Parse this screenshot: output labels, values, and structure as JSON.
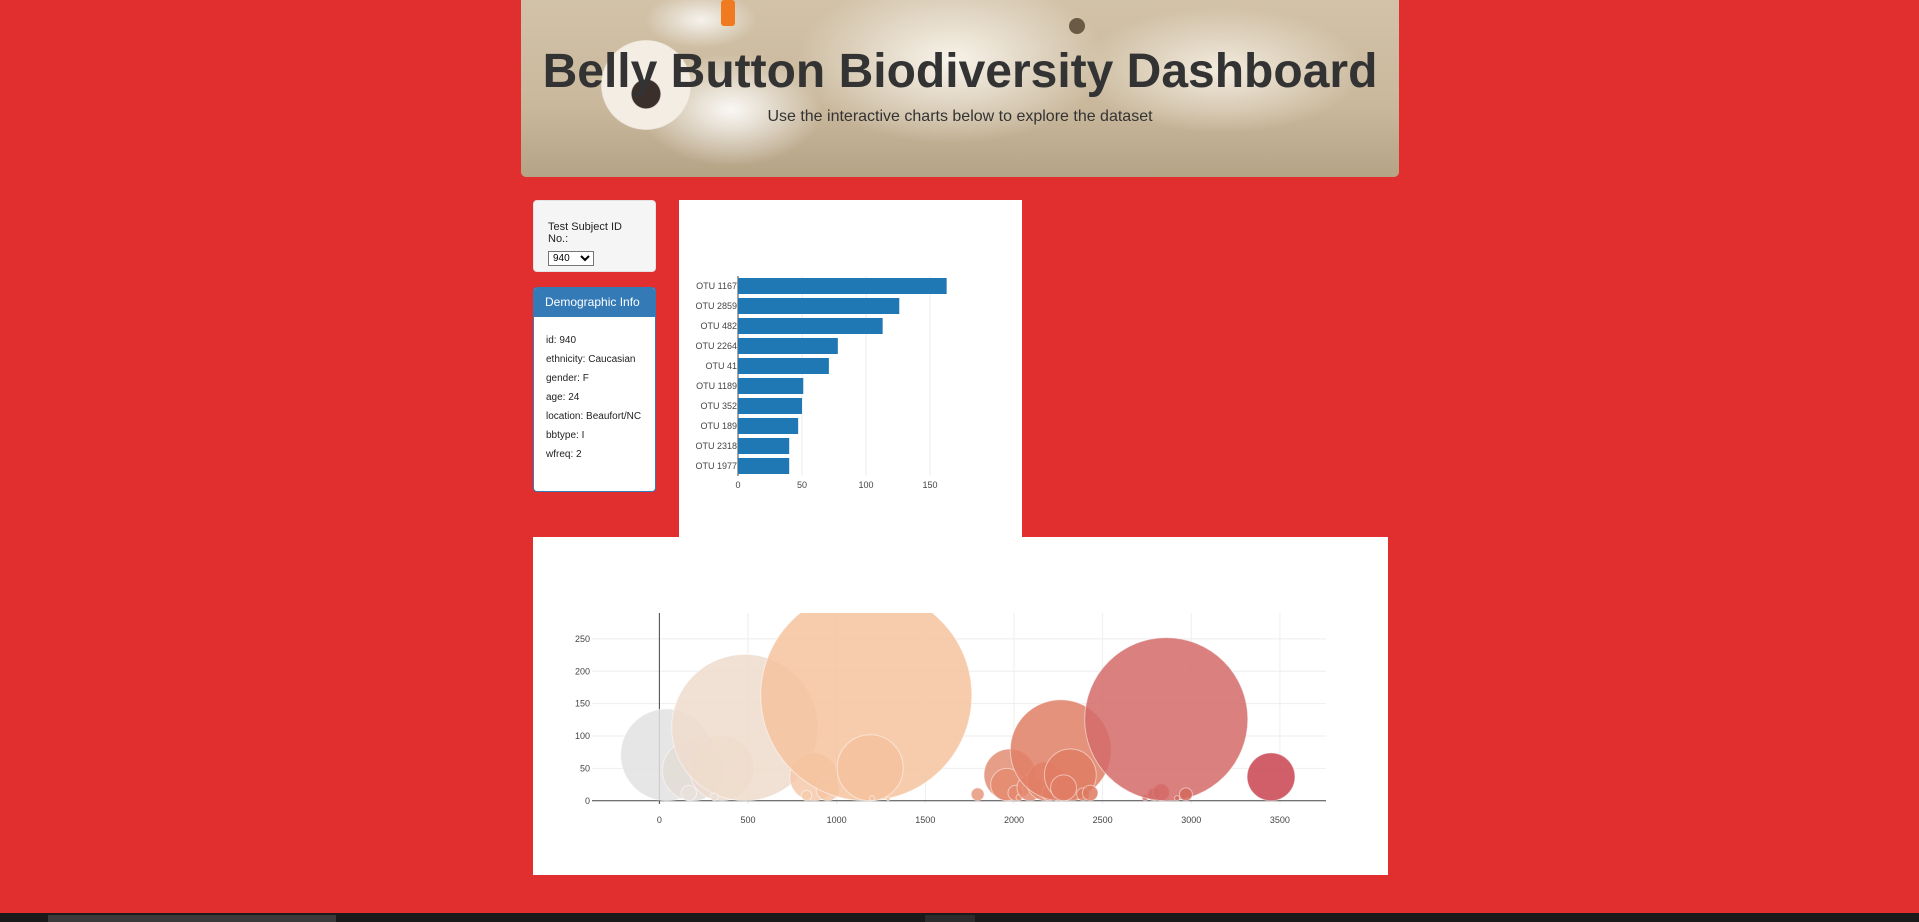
{
  "header": {
    "title": "Belly Button Biodiversity Dashboard",
    "subtitle": "Use the interactive charts below to explore the dataset"
  },
  "selector": {
    "label": "Test Subject ID No.:",
    "selected": "940"
  },
  "demographics": {
    "heading": "Demographic Info",
    "rows": [
      "id: 940",
      "ethnicity: Caucasian",
      "gender: F",
      "age: 24",
      "location: Beaufort/NC",
      "bbtype: I",
      "wfreq: 2"
    ]
  },
  "colors": {
    "page_bg": "#e12e2f",
    "bar": "#1f77b4",
    "panel_primary": "#337ab7"
  },
  "chart_data": [
    {
      "type": "bar",
      "orientation": "horizontal",
      "categories": [
        "OTU 1167",
        "OTU 2859",
        "OTU 482",
        "OTU 2264",
        "OTU 41",
        "OTU 1189",
        "OTU 352",
        "OTU 189",
        "OTU 2318",
        "OTU 1977"
      ],
      "values": [
        163,
        126,
        113,
        78,
        71,
        51,
        50,
        47,
        40,
        40
      ],
      "xlim": [
        0,
        175
      ],
      "xticks": [
        0,
        50,
        100,
        150
      ],
      "grid": "vertical"
    },
    {
      "type": "scatter",
      "subtype": "bubble",
      "xlim": [
        -380,
        3760
      ],
      "ylim": [
        -5,
        290
      ],
      "xticks": [
        0,
        500,
        1000,
        1500,
        2000,
        2500,
        3000,
        3500
      ],
      "yticks": [
        0,
        50,
        100,
        150,
        200,
        250
      ],
      "points": [
        {
          "x": 41,
          "y": 71,
          "r": 71,
          "color": "#e2e2e2"
        },
        {
          "x": 189,
          "y": 47,
          "r": 47,
          "color": "#e3dcd6"
        },
        {
          "x": 352,
          "y": 50,
          "r": 50,
          "color": "#ecdbd0"
        },
        {
          "x": 482,
          "y": 113,
          "r": 113,
          "color": "#efdccc"
        },
        {
          "x": 166,
          "y": 12,
          "r": 12,
          "color": "#e8e0da"
        },
        {
          "x": 310,
          "y": 6,
          "r": 6,
          "color": "#ebded4"
        },
        {
          "x": 870,
          "y": 37,
          "r": 37,
          "color": "#f4c9aa"
        },
        {
          "x": 950,
          "y": 18,
          "r": 18,
          "color": "#f4c6a4"
        },
        {
          "x": 830,
          "y": 8,
          "r": 8,
          "color": "#f5cbac"
        },
        {
          "x": 1167,
          "y": 163,
          "r": 163,
          "color": "#f5c39f"
        },
        {
          "x": 1189,
          "y": 51,
          "r": 51,
          "color": "#f5c19c"
        },
        {
          "x": 1200,
          "y": 4,
          "r": 4,
          "color": "#f4c2a0"
        },
        {
          "x": 1290,
          "y": 3,
          "r": 3,
          "color": "#f3c1a0"
        },
        {
          "x": 1795,
          "y": 10,
          "r": 10,
          "color": "#e9987e"
        },
        {
          "x": 1977,
          "y": 40,
          "r": 40,
          "color": "#e38d73"
        },
        {
          "x": 1960,
          "y": 25,
          "r": 25,
          "color": "#e48b71"
        },
        {
          "x": 2010,
          "y": 12,
          "r": 12,
          "color": "#e48a70"
        },
        {
          "x": 2030,
          "y": 5,
          "r": 5,
          "color": "#e48a70"
        },
        {
          "x": 2090,
          "y": 20,
          "r": 20,
          "color": "#e3876d"
        },
        {
          "x": 2180,
          "y": 30,
          "r": 30,
          "color": "#e2846a"
        },
        {
          "x": 2200,
          "y": 12,
          "r": 12,
          "color": "#e2846a"
        },
        {
          "x": 2240,
          "y": 5,
          "r": 5,
          "color": "#e2826a"
        },
        {
          "x": 2264,
          "y": 78,
          "r": 78,
          "color": "#e07f66"
        },
        {
          "x": 2318,
          "y": 40,
          "r": 40,
          "color": "#df7c63"
        },
        {
          "x": 2280,
          "y": 20,
          "r": 20,
          "color": "#df7d64"
        },
        {
          "x": 2390,
          "y": 10,
          "r": 10,
          "color": "#de7a62"
        },
        {
          "x": 2430,
          "y": 12,
          "r": 12,
          "color": "#de7a62"
        },
        {
          "x": 2740,
          "y": 5,
          "r": 5,
          "color": "#d86f5e"
        },
        {
          "x": 2790,
          "y": 10,
          "r": 10,
          "color": "#d76d5d"
        },
        {
          "x": 2830,
          "y": 13,
          "r": 13,
          "color": "#d66c5c"
        },
        {
          "x": 2859,
          "y": 126,
          "r": 126,
          "color": "#d46b6a"
        },
        {
          "x": 2920,
          "y": 4,
          "r": 4,
          "color": "#d36a5c"
        },
        {
          "x": 2970,
          "y": 10,
          "r": 10,
          "color": "#d3685b"
        },
        {
          "x": 3450,
          "y": 37,
          "r": 37,
          "color": "#c9434f"
        }
      ]
    }
  ]
}
